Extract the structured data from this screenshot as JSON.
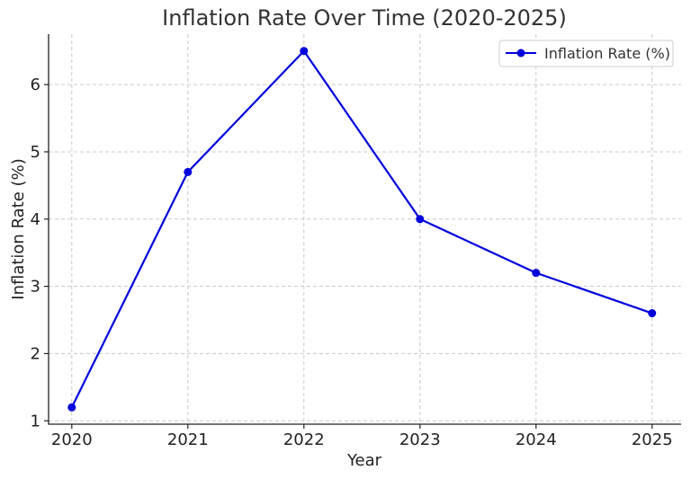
{
  "chart_data": {
    "type": "line",
    "title": "Inflation Rate Over Time (2020-2025)",
    "xlabel": "Year",
    "ylabel": "Inflation Rate (%)",
    "x": [
      2020,
      2021,
      2022,
      2023,
      2024,
      2025
    ],
    "series": [
      {
        "name": "Inflation Rate (%)",
        "values": [
          1.2,
          4.7,
          6.5,
          4.0,
          3.2,
          2.6
        ],
        "color": "#0000dd",
        "marker": "circle"
      }
    ],
    "xlim": [
      2019.8,
      2025.25
    ],
    "ylim": [
      0.95,
      6.75
    ],
    "yticks": [
      1,
      2,
      3,
      4,
      5,
      6
    ],
    "xticks": [
      "2020",
      "2021",
      "2022",
      "2023",
      "2024",
      "2025"
    ],
    "grid": true,
    "legend": "top-right"
  }
}
